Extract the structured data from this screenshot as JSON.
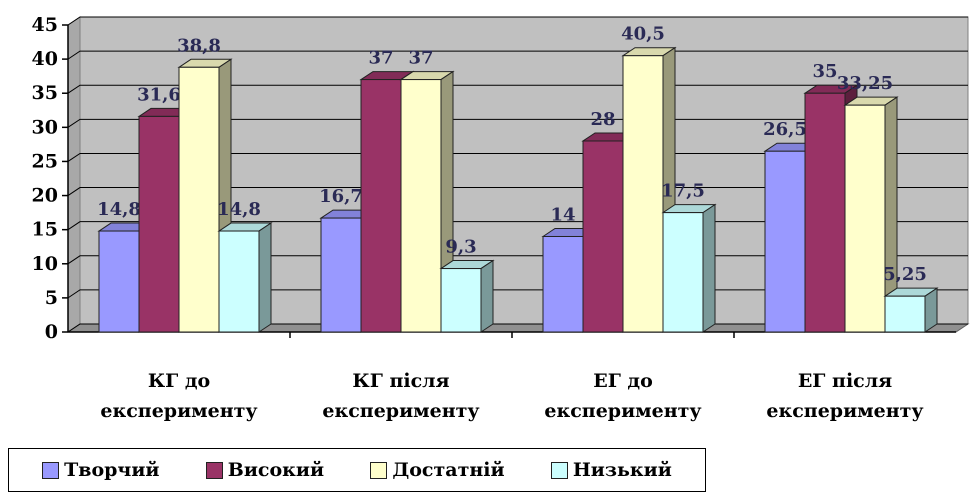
{
  "chart_data": {
    "type": "bar",
    "categories": [
      [
        "КГ до",
        "експерименту"
      ],
      [
        "КГ після",
        "експерименту"
      ],
      [
        "ЕГ до",
        "експерименту"
      ],
      [
        "ЕГ після",
        "експерименту"
      ]
    ],
    "series": [
      {
        "name": "Творчий",
        "color": "#9999ff",
        "values": [
          14.8,
          16.7,
          14,
          26.5
        ],
        "labels": [
          "14,8",
          "16,7",
          "14",
          "26,5"
        ]
      },
      {
        "name": "Високий",
        "color": "#993366",
        "values": [
          31.6,
          37,
          28,
          35
        ],
        "labels": [
          "31,6",
          "37",
          "28",
          "35"
        ]
      },
      {
        "name": "Достатній",
        "color": "#ffffcc",
        "values": [
          38.8,
          37,
          40.5,
          33.25
        ],
        "labels": [
          "38,8",
          "37",
          "40,5",
          "33,25"
        ]
      },
      {
        "name": "Низький",
        "color": "#ccffff",
        "values": [
          14.8,
          9.3,
          17.5,
          5.25
        ],
        "labels": [
          "14,8",
          "9,3",
          "17,5",
          "5,25"
        ]
      }
    ],
    "y_ticks": [
      "0",
      "5",
      "10",
      "15",
      "20",
      "25",
      "30",
      "35",
      "40",
      "45"
    ],
    "ylim": [
      0,
      45
    ],
    "grid": true,
    "plot_background": "#c0c0c0",
    "legend_position": "bottom-left"
  }
}
